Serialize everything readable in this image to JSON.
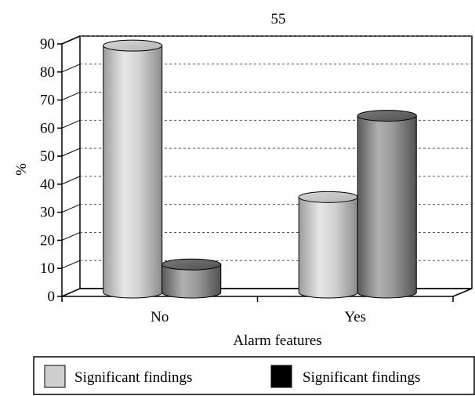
{
  "chart_data": {
    "type": "bar",
    "title": "55",
    "xlabel": "Alarm features",
    "ylabel": "%",
    "ylim": [
      0,
      90
    ],
    "yticks": [
      0,
      10,
      20,
      30,
      40,
      50,
      60,
      70,
      80,
      90
    ],
    "categories": [
      "No",
      "Yes"
    ],
    "series": [
      {
        "name": "Significant findings",
        "values": [
          88,
          34
        ],
        "color": "#cfcfcf"
      },
      {
        "name": "Significant findings",
        "values": [
          10,
          63
        ],
        "color": "#8a8a8a"
      }
    ],
    "legend_swatch_colors": [
      "#cfcfcf",
      "#000000"
    ],
    "grid": true,
    "legend_position": "bottom"
  }
}
